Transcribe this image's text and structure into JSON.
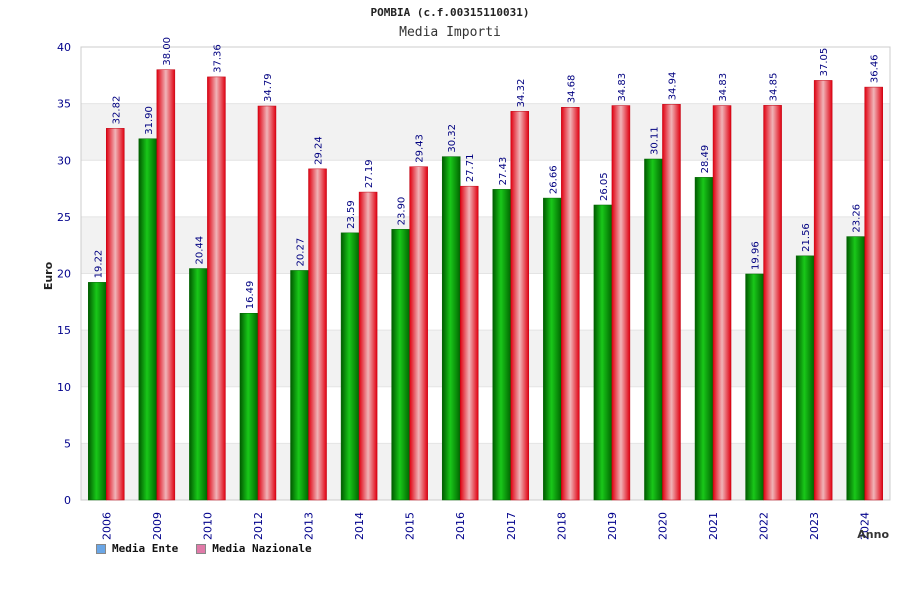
{
  "header": {
    "title": "POMBIA (c.f.00315110031)",
    "subtitle": "Media Importi"
  },
  "legend": {
    "items": [
      {
        "label": "Media Ente",
        "color": "#6aa6e6"
      },
      {
        "label": "Media Nazionale",
        "color": "#e07aa8"
      }
    ]
  },
  "colors": {
    "series_ente": "#0a9e0a",
    "series_nazionale": "#e8141e",
    "axis_text": "#00008b",
    "band": "#f2f2f2"
  },
  "chart_data": {
    "type": "bar",
    "xlabel": "Anno",
    "ylabel": "Euro",
    "ylim": [
      0,
      40
    ],
    "yticks": [
      0,
      5,
      10,
      15,
      20,
      25,
      30,
      35,
      40
    ],
    "grid": true,
    "legend_position": "bottom-left",
    "categories": [
      "2006",
      "2009",
      "2010",
      "2012",
      "2013",
      "2014",
      "2015",
      "2016",
      "2017",
      "2018",
      "2019",
      "2020",
      "2021",
      "2022",
      "2023",
      "2024"
    ],
    "series": [
      {
        "name": "Media Ente",
        "values": [
          19.22,
          31.9,
          20.44,
          16.49,
          20.27,
          23.59,
          23.9,
          30.32,
          27.43,
          26.66,
          26.05,
          30.11,
          28.49,
          19.96,
          21.56,
          23.26
        ]
      },
      {
        "name": "Media Nazionale",
        "values": [
          32.82,
          38.0,
          37.36,
          34.79,
          29.24,
          27.19,
          29.43,
          27.71,
          34.32,
          34.68,
          34.83,
          34.94,
          34.83,
          34.85,
          37.05,
          36.46
        ]
      }
    ]
  }
}
